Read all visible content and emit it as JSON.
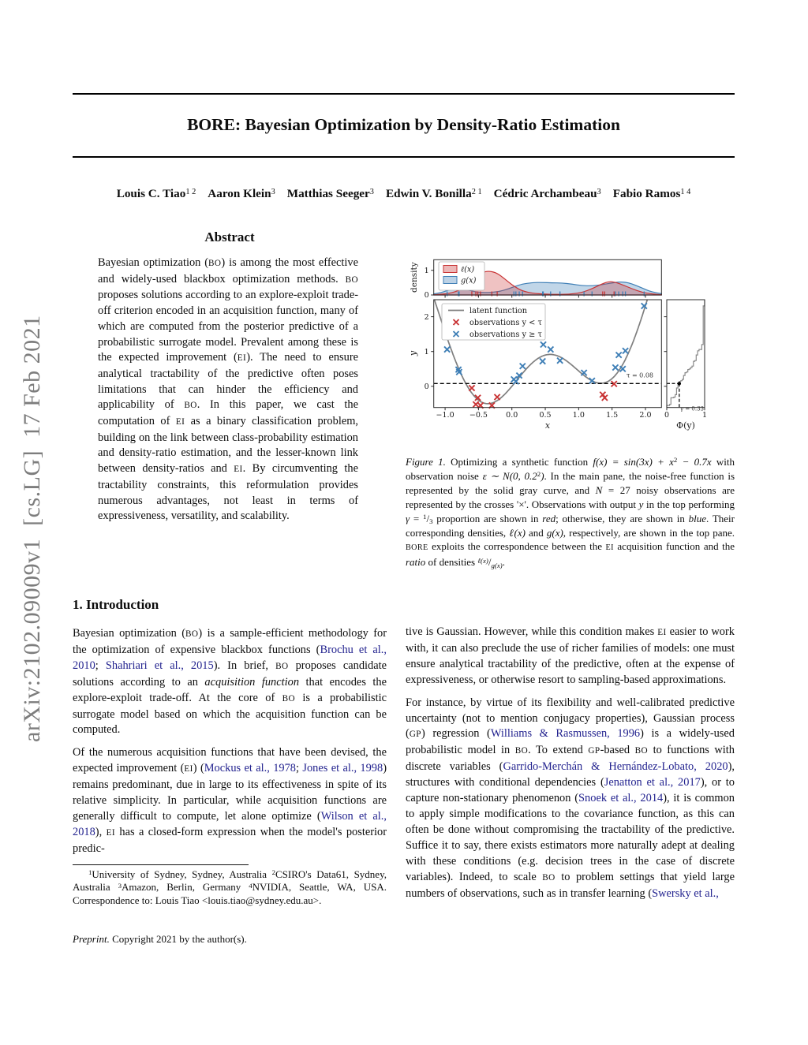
{
  "watermark": "arXiv:2102.09009v1  [cs.LG]  17 Feb 2021",
  "header": {
    "title": "BORE: Bayesian Optimization by Density-Ratio Estimation",
    "authors": [
      {
        "t": "Louis C. Tiao",
        "k": "b"
      },
      {
        "t": "1 2",
        "k": "sup"
      },
      {
        "k": "gap"
      },
      {
        "t": "Aaron Klein",
        "k": "b"
      },
      {
        "t": "3",
        "k": "sup"
      },
      {
        "k": "gap"
      },
      {
        "t": "Matthias Seeger",
        "k": "b"
      },
      {
        "t": "3",
        "k": "sup"
      },
      {
        "k": "gap"
      },
      {
        "t": "Edwin V. Bonilla",
        "k": "b"
      },
      {
        "t": "2 1",
        "k": "sup"
      },
      {
        "k": "gap"
      },
      {
        "t": "Cédric Archambeau",
        "k": "b"
      },
      {
        "t": "3",
        "k": "sup"
      },
      {
        "k": "gap"
      },
      {
        "t": "Fabio Ramos",
        "k": "b"
      },
      {
        "t": "1 4",
        "k": "sup"
      }
    ]
  },
  "left_column": {
    "abstract_heading": "Abstract",
    "abstract": [
      {
        "t": "Bayesian optimization (",
        "k": "n"
      },
      {
        "t": "BO",
        "k": "sc"
      },
      {
        "t": ") is among the most effective and widely-used blackbox optimization methods. ",
        "k": "n"
      },
      {
        "t": "BO",
        "k": "sc"
      },
      {
        "t": " proposes solutions according to an explore-exploit trade-off criterion encoded in an acquisition function, many of which are computed from the posterior predictive of a probabilistic surrogate model. Prevalent among these is the expected improvement (",
        "k": "n"
      },
      {
        "t": "EI",
        "k": "sc"
      },
      {
        "t": "). The need to ensure analytical tractability of the predictive often poses limitations that can hinder the efficiency and applicability of ",
        "k": "n"
      },
      {
        "t": "BO",
        "k": "sc"
      },
      {
        "t": ". In this paper, we cast the computation of ",
        "k": "n"
      },
      {
        "t": "EI",
        "k": "sc"
      },
      {
        "t": " as a binary classification problem, building on the link between class-probability estimation and density-ratio estimation, and the lesser-known link between density-ratios and ",
        "k": "n"
      },
      {
        "t": "EI",
        "k": "sc"
      },
      {
        "t": ". By circumventing the tractability constraints, this reformulation provides numerous advantages, not least in terms of expressiveness, versatility, and scalability.",
        "k": "n"
      }
    ],
    "intro_heading": "1. Introduction",
    "paragraphs": [
      [
        {
          "t": "Bayesian optimization (",
          "k": "n"
        },
        {
          "t": "BO",
          "k": "sc"
        },
        {
          "t": ") is a sample-efficient methodology for the optimization of expensive blackbox functions (",
          "k": "n"
        },
        {
          "t": "Brochu et al., 2010",
          "k": "l"
        },
        {
          "t": "; ",
          "k": "n"
        },
        {
          "t": "Shahriari et al., 2015",
          "k": "l"
        },
        {
          "t": "). In brief, ",
          "k": "n"
        },
        {
          "t": "BO",
          "k": "sc"
        },
        {
          "t": " proposes candidate solutions according to an ",
          "k": "n"
        },
        {
          "t": "acquisition function",
          "k": "i"
        },
        {
          "t": " that encodes the explore-exploit trade-off. At the core of ",
          "k": "n"
        },
        {
          "t": "BO",
          "k": "sc"
        },
        {
          "t": " is a probabilistic surrogate model based on which the acquisition function can be computed.",
          "k": "n"
        }
      ],
      [
        {
          "t": "Of the numerous acquisition functions that have been devised, the expected improvement (",
          "k": "n"
        },
        {
          "t": "EI",
          "k": "sc"
        },
        {
          "t": ") (",
          "k": "n"
        },
        {
          "t": "Mockus et al., 1978",
          "k": "l"
        },
        {
          "t": "; ",
          "k": "n"
        },
        {
          "t": "Jones et al., 1998",
          "k": "l"
        },
        {
          "t": ") remains predominant, due in large to its effectiveness in spite of its relative simplicity. In particular, while acquisition functions are generally difficult to compute, let alone optimize (",
          "k": "n"
        },
        {
          "t": "Wilson et al., 2018",
          "k": "l"
        },
        {
          "t": "), ",
          "k": "n"
        },
        {
          "t": "EI",
          "k": "sc"
        },
        {
          "t": " has a closed-form expression when the model's posterior predic-",
          "k": "n"
        }
      ]
    ],
    "footnote": [
      {
        "t": "1",
        "k": "sup"
      },
      {
        "t": "University of Sydney, Sydney, Australia ",
        "k": "n"
      },
      {
        "t": "2",
        "k": "sup"
      },
      {
        "t": "CSIRO's Data61, Sydney, Australia ",
        "k": "n"
      },
      {
        "t": "3",
        "k": "sup"
      },
      {
        "t": "Amazon, Berlin, Germany ",
        "k": "n"
      },
      {
        "t": "4",
        "k": "sup"
      },
      {
        "t": "NVIDIA, Seattle, WA, USA. Correspondence to: Louis Tiao <louis.tiao@sydney.edu.au>.",
        "k": "n"
      }
    ],
    "preprint": [
      {
        "t": "Preprint.",
        "k": "i"
      },
      {
        "t": " Copyright 2021 by the author(s).",
        "k": "n"
      }
    ]
  },
  "right_column": {
    "paragraphs": [
      [
        {
          "t": "tive is Gaussian. However, while this condition makes ",
          "k": "n"
        },
        {
          "t": "EI",
          "k": "sc"
        },
        {
          "t": " easier to work with, it can also preclude the use of richer families of models: one must ensure analytical tractability of the predictive, often at the expense of expressiveness, or otherwise resort to sampling-based approximations.",
          "k": "n"
        }
      ],
      [
        {
          "t": "For instance, by virtue of its flexibility and well-calibrated predictive uncertainty (not to mention conjugacy properties), Gaussian process (",
          "k": "n"
        },
        {
          "t": "GP",
          "k": "sc"
        },
        {
          "t": ") regression (",
          "k": "n"
        },
        {
          "t": "Williams & Rasmussen, 1996",
          "k": "l"
        },
        {
          "t": ") is a widely-used probabilistic model in ",
          "k": "n"
        },
        {
          "t": "BO",
          "k": "sc"
        },
        {
          "t": ". To extend ",
          "k": "n"
        },
        {
          "t": "GP",
          "k": "sc"
        },
        {
          "t": "-based ",
          "k": "n"
        },
        {
          "t": "BO",
          "k": "sc"
        },
        {
          "t": " to functions with discrete variables (",
          "k": "n"
        },
        {
          "t": "Garrido-Merchán & Hernández-Lobato, 2020",
          "k": "l"
        },
        {
          "t": "), structures with conditional dependencies (",
          "k": "n"
        },
        {
          "t": "Jenatton et al., 2017",
          "k": "l"
        },
        {
          "t": "), or to capture non-stationary phenomenon (",
          "k": "n"
        },
        {
          "t": "Snoek et al., 2014",
          "k": "l"
        },
        {
          "t": "), it is common to apply simple modifications to the covariance function, as this can often be done without compromising the tractability of the predictive. Suffice it to say, there exists estimators more naturally adept at dealing with these conditions (e.g. decision trees in the case of discrete variables). Indeed, to scale ",
          "k": "n"
        },
        {
          "t": "BO",
          "k": "sc"
        },
        {
          "t": " to problem settings that yield large numbers of observations, such as in transfer learning (",
          "k": "n"
        },
        {
          "t": "Swersky et al.,",
          "k": "l"
        }
      ]
    ]
  },
  "figure": {
    "caption": [
      {
        "t": "Figure 1.",
        "k": "i"
      },
      {
        "t": " Optimizing a synthetic function ",
        "k": "n"
      },
      {
        "t": "f(x) = sin(3x) + x",
        "k": "m"
      },
      {
        "t": "2",
        "k": "sup"
      },
      {
        "t": " − 0.7x",
        "k": "m"
      },
      {
        "t": " with observation noise ",
        "k": "n"
      },
      {
        "t": "ε ∼ N(0, 0.2",
        "k": "m"
      },
      {
        "t": "2",
        "k": "sup"
      },
      {
        "t": ")",
        "k": "m"
      },
      {
        "t": ". In the main pane, the noise-free function is represented by the solid gray curve, and ",
        "k": "n"
      },
      {
        "t": "N",
        "k": "m"
      },
      {
        "t": " = 27 noisy observations are represented by the crosses '×'. Observations with output ",
        "k": "n"
      },
      {
        "t": "y",
        "k": "m"
      },
      {
        "t": " in the top performing ",
        "k": "n"
      },
      {
        "t": "γ",
        "k": "m"
      },
      {
        "t": " = ",
        "k": "n"
      },
      {
        "t": "1",
        "k": "sup"
      },
      {
        "t": "/",
        "k": "n"
      },
      {
        "t": "3",
        "k": "sub"
      },
      {
        "t": " proportion are shown in ",
        "k": "n"
      },
      {
        "t": "red",
        "k": "i"
      },
      {
        "t": "; otherwise, they are shown in ",
        "k": "n"
      },
      {
        "t": "blue",
        "k": "i"
      },
      {
        "t": ". Their corresponding densities, ",
        "k": "n"
      },
      {
        "t": "ℓ(x)",
        "k": "m"
      },
      {
        "t": " and ",
        "k": "n"
      },
      {
        "t": "g(x)",
        "k": "m"
      },
      {
        "t": ", respectively, are shown in the top pane. ",
        "k": "n"
      },
      {
        "t": "BORE",
        "k": "sc"
      },
      {
        "t": " exploits the correspondence between the ",
        "k": "n"
      },
      {
        "t": "EI",
        "k": "sc"
      },
      {
        "t": " acquisition function and the ",
        "k": "n"
      },
      {
        "t": "ratio",
        "k": "i"
      },
      {
        "t": " of densities ",
        "k": "n"
      },
      {
        "t": "ℓ(x)",
        "k": "m sup"
      },
      {
        "t": "/",
        "k": "n"
      },
      {
        "t": "g(x)",
        "k": "m sub"
      },
      {
        "t": ".",
        "k": "n"
      }
    ],
    "chart_data": {
      "type": "composite",
      "x_range": [
        -1.17,
        2.24
      ],
      "colors": {
        "red": "#c93435",
        "blue": "#3f7fb6",
        "latent": "#7f7f7f",
        "ecdf": "#8a8a8a"
      },
      "density_panel": {
        "ylabel": "density",
        "yticks": [
          0,
          1
        ],
        "ymax": 1.43,
        "legend": [
          {
            "label": "ℓ(x)",
            "series": "red"
          },
          {
            "label": "g(x)",
            "series": "blue"
          }
        ],
        "l_curve": [
          [
            -1.17,
            0.01
          ],
          [
            -1.0,
            0.04
          ],
          [
            -0.9,
            0.09
          ],
          [
            -0.8,
            0.18
          ],
          [
            -0.7,
            0.32
          ],
          [
            -0.6,
            0.55
          ],
          [
            -0.5,
            0.78
          ],
          [
            -0.42,
            0.93
          ],
          [
            -0.35,
            0.97
          ],
          [
            -0.25,
            0.92
          ],
          [
            -0.15,
            0.75
          ],
          [
            -0.05,
            0.52
          ],
          [
            0.05,
            0.32
          ],
          [
            0.15,
            0.17
          ],
          [
            0.3,
            0.07
          ],
          [
            0.5,
            0.03
          ],
          [
            0.7,
            0.02
          ],
          [
            0.9,
            0.04
          ],
          [
            1.05,
            0.1
          ],
          [
            1.2,
            0.25
          ],
          [
            1.35,
            0.45
          ],
          [
            1.45,
            0.55
          ],
          [
            1.55,
            0.52
          ],
          [
            1.65,
            0.42
          ],
          [
            1.8,
            0.25
          ],
          [
            1.95,
            0.11
          ],
          [
            2.1,
            0.04
          ],
          [
            2.24,
            0.01
          ]
        ],
        "g_curve": [
          [
            -1.17,
            0.04
          ],
          [
            -1.05,
            0.1
          ],
          [
            -0.95,
            0.2
          ],
          [
            -0.85,
            0.28
          ],
          [
            -0.75,
            0.27
          ],
          [
            -0.65,
            0.2
          ],
          [
            -0.55,
            0.13
          ],
          [
            -0.45,
            0.1
          ],
          [
            -0.35,
            0.1
          ],
          [
            -0.25,
            0.12
          ],
          [
            -0.15,
            0.17
          ],
          [
            -0.05,
            0.25
          ],
          [
            0.05,
            0.35
          ],
          [
            0.15,
            0.44
          ],
          [
            0.3,
            0.5
          ],
          [
            0.45,
            0.51
          ],
          [
            0.6,
            0.49
          ],
          [
            0.75,
            0.49
          ],
          [
            0.9,
            0.44
          ],
          [
            1.05,
            0.38
          ],
          [
            1.2,
            0.37
          ],
          [
            1.35,
            0.42
          ],
          [
            1.5,
            0.49
          ],
          [
            1.6,
            0.53
          ],
          [
            1.7,
            0.52
          ],
          [
            1.8,
            0.45
          ],
          [
            1.9,
            0.34
          ],
          [
            2.0,
            0.22
          ],
          [
            2.1,
            0.12
          ],
          [
            2.24,
            0.05
          ]
        ]
      },
      "main_panel": {
        "xlabel": "x",
        "ylabel": "y",
        "xticks": [
          -1.0,
          -0.5,
          0.0,
          0.5,
          1.0,
          1.5,
          2.0
        ],
        "xtick_labels": [
          "−1.0",
          "−0.5",
          "0.0",
          "0.5",
          "1.0",
          "1.5",
          "2.0"
        ],
        "yticks": [
          0,
          1,
          2
        ],
        "y_range": [
          -0.61,
          2.49
        ],
        "latent_function": "f(x) = sin(3x) + x² − 0.7x",
        "legend": [
          "latent function",
          "observations y < τ",
          "observations y ≥ τ"
        ],
        "threshold": 0.08,
        "threshold_label": "τ = 0.08",
        "observations_below": [
          [
            -0.6,
            -0.05
          ],
          [
            -0.51,
            -0.33
          ],
          [
            -0.54,
            -0.52
          ],
          [
            -0.47,
            -0.55
          ],
          [
            -0.3,
            -0.55
          ],
          [
            -0.22,
            -0.31
          ],
          [
            1.36,
            -0.24
          ],
          [
            1.39,
            -0.33
          ],
          [
            1.53,
            0.07
          ]
        ],
        "observations_above": [
          [
            -0.97,
            1.06
          ],
          [
            -0.8,
            0.48
          ],
          [
            -0.79,
            0.41
          ],
          [
            0.03,
            0.2
          ],
          [
            0.06,
            0.14
          ],
          [
            0.11,
            0.31
          ],
          [
            0.16,
            0.58
          ],
          [
            0.46,
            0.72
          ],
          [
            0.47,
            1.2
          ],
          [
            0.58,
            1.06
          ],
          [
            0.72,
            0.74
          ],
          [
            1.08,
            0.39
          ],
          [
            1.2,
            0.16
          ],
          [
            1.55,
            0.54
          ],
          [
            1.6,
            0.9
          ],
          [
            1.66,
            0.5
          ],
          [
            1.7,
            1.02
          ],
          [
            1.98,
            2.31
          ]
        ]
      },
      "ecdf_panel": {
        "xlabel": "Φ(y)",
        "xticks": [
          0,
          1
        ],
        "gamma": 0.33,
        "gamma_label": "γ = 0.33"
      }
    }
  }
}
